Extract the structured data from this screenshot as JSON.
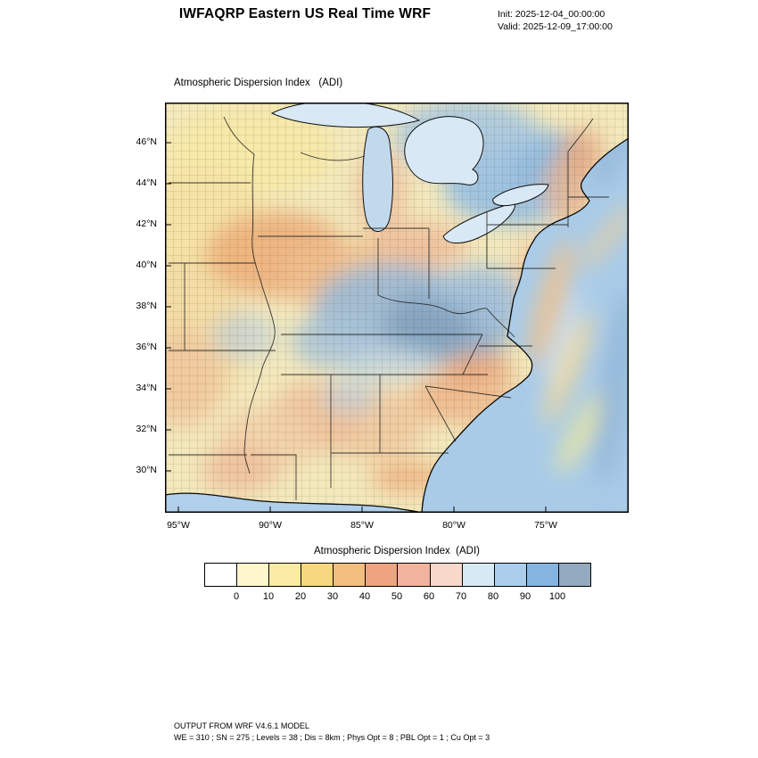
{
  "header": {
    "title": "IWFAQRP Eastern US Real Time WRF",
    "init_label": "Init: 2025-12-04_00:00:00",
    "valid_label": "Valid: 2025-12-09_17:00:00"
  },
  "map": {
    "subtitle": "Atmospheric Dispersion Index   (ADI)",
    "lat_ticks": [
      "46°N",
      "44°N",
      "42°N",
      "40°N",
      "38°N",
      "36°N",
      "34°N",
      "32°N",
      "30°N"
    ],
    "lon_ticks": [
      "95°W",
      "90°W",
      "85°W",
      "80°W",
      "75°W"
    ]
  },
  "colorbar": {
    "title": "Atmospheric Dispersion Index  (ADI)",
    "tick_labels": [
      "0",
      "10",
      "20",
      "30",
      "40",
      "50",
      "60",
      "70",
      "80",
      "90",
      "100"
    ],
    "colors": [
      "#FFFFFF",
      "#FFF6CE",
      "#FAEBA4",
      "#F6D97E",
      "#F2BE7E",
      "#EFA380",
      "#F2B49E",
      "#F7D8CB",
      "#D8E9F6",
      "#ACCEEC",
      "#86B4E0",
      "#92AABF"
    ]
  },
  "footer": {
    "line1": "OUTPUT FROM WRF V4.6.1 MODEL",
    "line2": "WE = 310 ; SN = 275 ; Levels = 38 ; Dis = 8km ; Phys Opt = 8 ; PBL Opt = 1 ; Cu Opt = 3"
  }
}
